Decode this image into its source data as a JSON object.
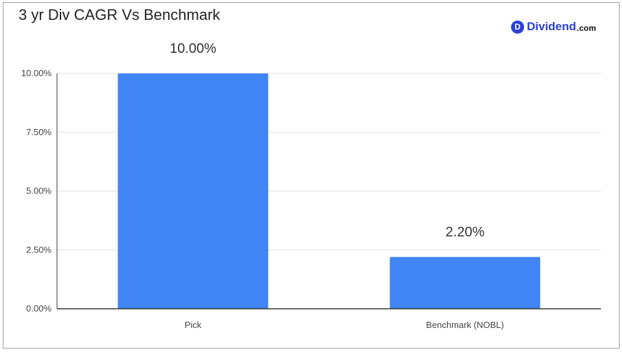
{
  "logo": {
    "badge": "D",
    "word": "Dividend",
    "tld": ".com"
  },
  "colors": {
    "bar": "#4285f4",
    "grid": "#e0e0e0",
    "axis": "#333333",
    "logo": "#2b3fd6"
  },
  "chart_data": {
    "type": "bar",
    "title": "3 yr Div CAGR Vs Benchmark",
    "categories": [
      "Pick",
      "Benchmark (NOBL)"
    ],
    "values": [
      10.0,
      2.2
    ],
    "data_labels": [
      "10.00%",
      "2.20%"
    ],
    "yticks": [
      "0.00%",
      "2.50%",
      "5.00%",
      "7.50%",
      "10.00%"
    ],
    "ytick_values": [
      0,
      2.5,
      5,
      7.5,
      10
    ],
    "ylim": [
      0,
      10
    ],
    "xlabel": "",
    "ylabel": "",
    "grid": true,
    "legend": "none"
  }
}
